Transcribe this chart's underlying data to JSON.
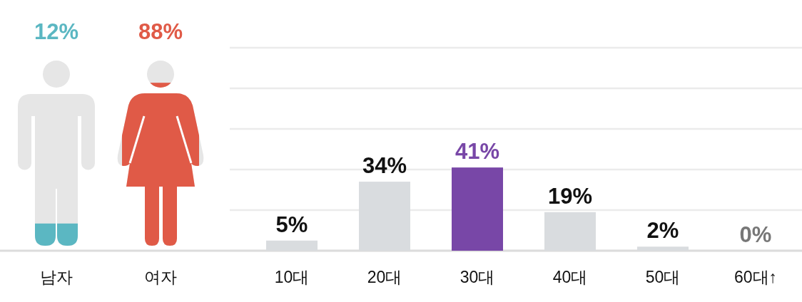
{
  "chart_data": [
    {
      "type": "bar",
      "categories": [
        "남자",
        "여자"
      ],
      "values": [
        12,
        88
      ],
      "colors": [
        "#5bb7c2",
        "#e05a47"
      ],
      "value_labels": [
        "12%",
        "88%"
      ],
      "tick_labels": "x"
    },
    {
      "type": "bar",
      "categories": [
        "10대",
        "20대",
        "30대",
        "40대",
        "50대",
        "60대↑"
      ],
      "values": [
        5,
        34,
        41,
        19,
        2,
        0
      ],
      "colors": [
        "#d9dcdf",
        "#d9dcdf",
        "#7847a7",
        "#d9dcdf",
        "#d9dcdf",
        "#d9dcdf"
      ],
      "value_labels": [
        "5%",
        "34%",
        "41%",
        "19%",
        "2%",
        "0%"
      ],
      "ylim": [
        0,
        100
      ],
      "yticks": [
        {
          "value": 0,
          "label": null
        },
        {
          "value": 20,
          "label": null
        },
        {
          "value": 40,
          "label": null
        },
        {
          "value": 60,
          "label": null
        },
        {
          "value": 80,
          "label": null
        },
        {
          "value": 100,
          "label": null
        }
      ],
      "grid": "y",
      "tick_labels": "x"
    }
  ]
}
